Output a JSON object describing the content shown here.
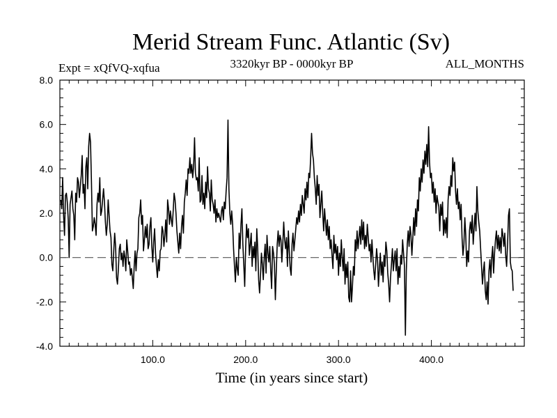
{
  "chart_data": {
    "type": "line",
    "title": "Merid Stream Func. Atlantic (Sv)",
    "subtitle_left": "Expt = xQfVQ-xqfua",
    "subtitle_center": "3320kyr BP - 0000kyr BP",
    "subtitle_right": "ALL_MONTHS",
    "xlabel": "Time (in years since start)",
    "ylabel": "",
    "xlim": [
      0,
      500
    ],
    "ylim": [
      -4.0,
      8.0
    ],
    "x_ticks": [
      100,
      200,
      300,
      400
    ],
    "x_tick_labels": [
      "100.0",
      "200.0",
      "300.0",
      "400.0"
    ],
    "y_ticks": [
      -4,
      -2,
      0,
      2,
      4,
      6,
      8
    ],
    "y_tick_labels": [
      "-4.0",
      "-2.0",
      "0.0",
      "2.0",
      "4.0",
      "6.0",
      "8.0"
    ],
    "reference_line": {
      "y": 0.0,
      "style": "dashed"
    },
    "series": [
      {
        "name": "Merid Stream Func. Atlantic",
        "x_start": 1,
        "x_step": 1,
        "values": [
          2.6,
          2.2,
          3.6,
          1.9,
          1.0,
          2.8,
          2.9,
          2.5,
          1.7,
          0.0,
          2.4,
          2.7,
          3.0,
          2.2,
          1.9,
          0.8,
          2.9,
          2.5,
          3.6,
          3.4,
          2.7,
          3.2,
          3.7,
          4.6,
          2.9,
          3.3,
          2.2,
          4.1,
          4.5,
          3.1,
          5.0,
          5.6,
          5.2,
          3.4,
          1.2,
          1.4,
          1.8,
          1.5,
          1.0,
          2.4,
          2.9,
          2.5,
          3.6,
          1.9,
          2.1,
          2.6,
          3.1,
          2.5,
          1.6,
          1.0,
          1.5,
          2.6,
          1.9,
          1.2,
          0.9,
          -0.3,
          -0.6,
          0.3,
          1.1,
          0.5,
          -0.9,
          -1.2,
          -0.5,
          0.4,
          0.6,
          -0.1,
          0.2,
          -0.4,
          0.3,
          0.0,
          -0.6,
          0.8,
          0.3,
          -0.3,
          -0.2,
          -0.8,
          -0.5,
          -0.9,
          -1.4,
          -0.4,
          0.3,
          -0.6,
          0.2,
          0.4,
          1.8,
          2.0,
          2.6,
          1.5,
          1.9,
          0.3,
          0.8,
          1.4,
          0.9,
          1.5,
          0.4,
          0.6,
          1.4,
          1.8,
          0.5,
          -0.2,
          0.7,
          1.3,
          0.2,
          -0.4,
          -0.9,
          -0.1,
          -0.6,
          0.3,
          0.4,
          1.4,
          1.2,
          0.5,
          1.0,
          1.7,
          0.7,
          2.6,
          2.2,
          1.5,
          2.1,
          1.7,
          1.4,
          2.1,
          2.9,
          2.6,
          2.0,
          1.2,
          0.7,
          0.2,
          1.1,
          0.4,
          1.4,
          1.9,
          1.1,
          2.5,
          2.9,
          3.5,
          2.8,
          4.0,
          3.8,
          4.5,
          3.8,
          4.2,
          3.6,
          4.1,
          5.4,
          3.8,
          3.5,
          3.6,
          3.0,
          4.5,
          2.5,
          2.6,
          3.7,
          2.4,
          2.9,
          2.2,
          3.4,
          2.7,
          4.1,
          3.1,
          2.9,
          2.1,
          3.5,
          2.6,
          2.4,
          2.0,
          2.6,
          1.6,
          2.2,
          1.8,
          2.0,
          1.8,
          1.6,
          2.1,
          2.3,
          1.7,
          2.5,
          2.2,
          3.0,
          3.6,
          6.2,
          3.1,
          2.0,
          1.5,
          2.1,
          1.5,
          0.4,
          -0.4,
          -1.1,
          0.0,
          -0.5,
          -0.8,
          1.1,
          0.4,
          1.5,
          2.2,
          0.6,
          -0.3,
          -1.3,
          0.4,
          1.5,
          0.9,
          1.3,
          0.1,
          0.6,
          1.1,
          -0.4,
          0.5,
          0.0,
          0.7,
          -0.6,
          1.3,
          0.4,
          -1.0,
          -1.6,
          -0.8,
          0.2,
          -0.3,
          -1.0,
          0.0,
          0.6,
          -0.7,
          1.0,
          0.2,
          -0.2,
          0.5,
          -0.6,
          -1.4,
          0.5,
          0.2,
          -0.3,
          -1.9,
          -0.6,
          0.6,
          1.2,
          0.5,
          1.0,
          0.8,
          -0.2,
          0.6,
          1.6,
          0.8,
          0.4,
          0.9,
          -0.4,
          1.2,
          0.3,
          -0.5,
          -0.8,
          0.6,
          1.1,
          0.3,
          0.8,
          1.3,
          1.8,
          1.5,
          2.1,
          1.6,
          2.4,
          1.9,
          2.8,
          2.4,
          2.0,
          3.1,
          2.6,
          3.4,
          2.7,
          3.8,
          3.6,
          4.5,
          5.6,
          4.7,
          4.4,
          3.6,
          3.1,
          2.4,
          3.7,
          2.8,
          3.3,
          1.8,
          2.4,
          3.0,
          2.0,
          1.2,
          2.2,
          1.6,
          1.0,
          1.7,
          0.8,
          1.4,
          0.4,
          0.8,
          0.1,
          -0.5,
          1.0,
          0.2,
          0.6,
          -0.1,
          0.5,
          -0.8,
          0.2,
          -0.4,
          0.8,
          0.0,
          -0.6,
          0.4,
          -1.2,
          -0.3,
          -0.9,
          -0.2,
          -1.8,
          -2.0,
          -0.6,
          -2.0,
          -1.3,
          -0.4,
          -0.8,
          0.8,
          0.3,
          1.2,
          0.4,
          0.9,
          1.4,
          0.6,
          1.7,
          0.8,
          1.6,
          0.4,
          1.0,
          0.5,
          1.5,
          0.9,
          0.3,
          0.6,
          -0.2,
          0.8,
          0.0,
          -0.6,
          -1.0,
          -0.3,
          0.4,
          -0.1,
          -1.3,
          -0.5,
          0.2,
          -0.8,
          -0.2,
          -1.1,
          0.1,
          -0.4,
          0.7,
          0.3,
          -0.7,
          -1.2,
          -2.0,
          -0.9,
          -0.3,
          0.4,
          -0.6,
          -0.1,
          0.3,
          -0.6,
          0.4,
          -1.2,
          -0.4,
          -0.9,
          0.1,
          -0.3,
          0.8,
          0.2,
          -0.4,
          -3.5,
          -0.6,
          0.6,
          1.2,
          0.5,
          1.4,
          1.0,
          0.1,
          0.9,
          1.8,
          1.0,
          2.2,
          1.4,
          2.6,
          2.1,
          3.6,
          3.0,
          4.0,
          3.4,
          4.4,
          3.8,
          4.8,
          4.2,
          5.1,
          4.1,
          5.9,
          4.3,
          3.6,
          3.8,
          2.9,
          3.4,
          2.5,
          3.1,
          2.0,
          2.8,
          2.5,
          2.3,
          1.2,
          2.4,
          1.9,
          2.5,
          1.0,
          1.7,
          1.1,
          1.8,
          0.9,
          2.6,
          3.2,
          2.8,
          3.7,
          3.2,
          4.5,
          3.9,
          4.3,
          3.0,
          2.4,
          3.1,
          2.2,
          2.5,
          1.7,
          2.4,
          0.9,
          0.1,
          0.6,
          1.8,
          1.0,
          -0.4,
          0.3,
          -0.2,
          1.2,
          1.6,
          1.1,
          1.9,
          0.6,
          1.3,
          2.0,
          1.2,
          3.2,
          2.1,
          1.6,
          1.2,
          0.4,
          -0.4,
          -1.2,
          -0.6,
          -0.2,
          -1.5,
          -1.9,
          -1.1,
          -2.1,
          -0.6,
          -0.1,
          -0.9,
          0.0,
          0.5,
          -0.7,
          0.2,
          0.8,
          1.2,
          0.4,
          1.0,
          0.3,
          0.9,
          0.2,
          1.3,
          1.0,
          0.5,
          1.1,
          0.1,
          -0.4,
          0.6,
          1.9,
          2.2,
          -0.2,
          -0.5,
          -0.6,
          -1.5
        ]
      }
    ]
  }
}
